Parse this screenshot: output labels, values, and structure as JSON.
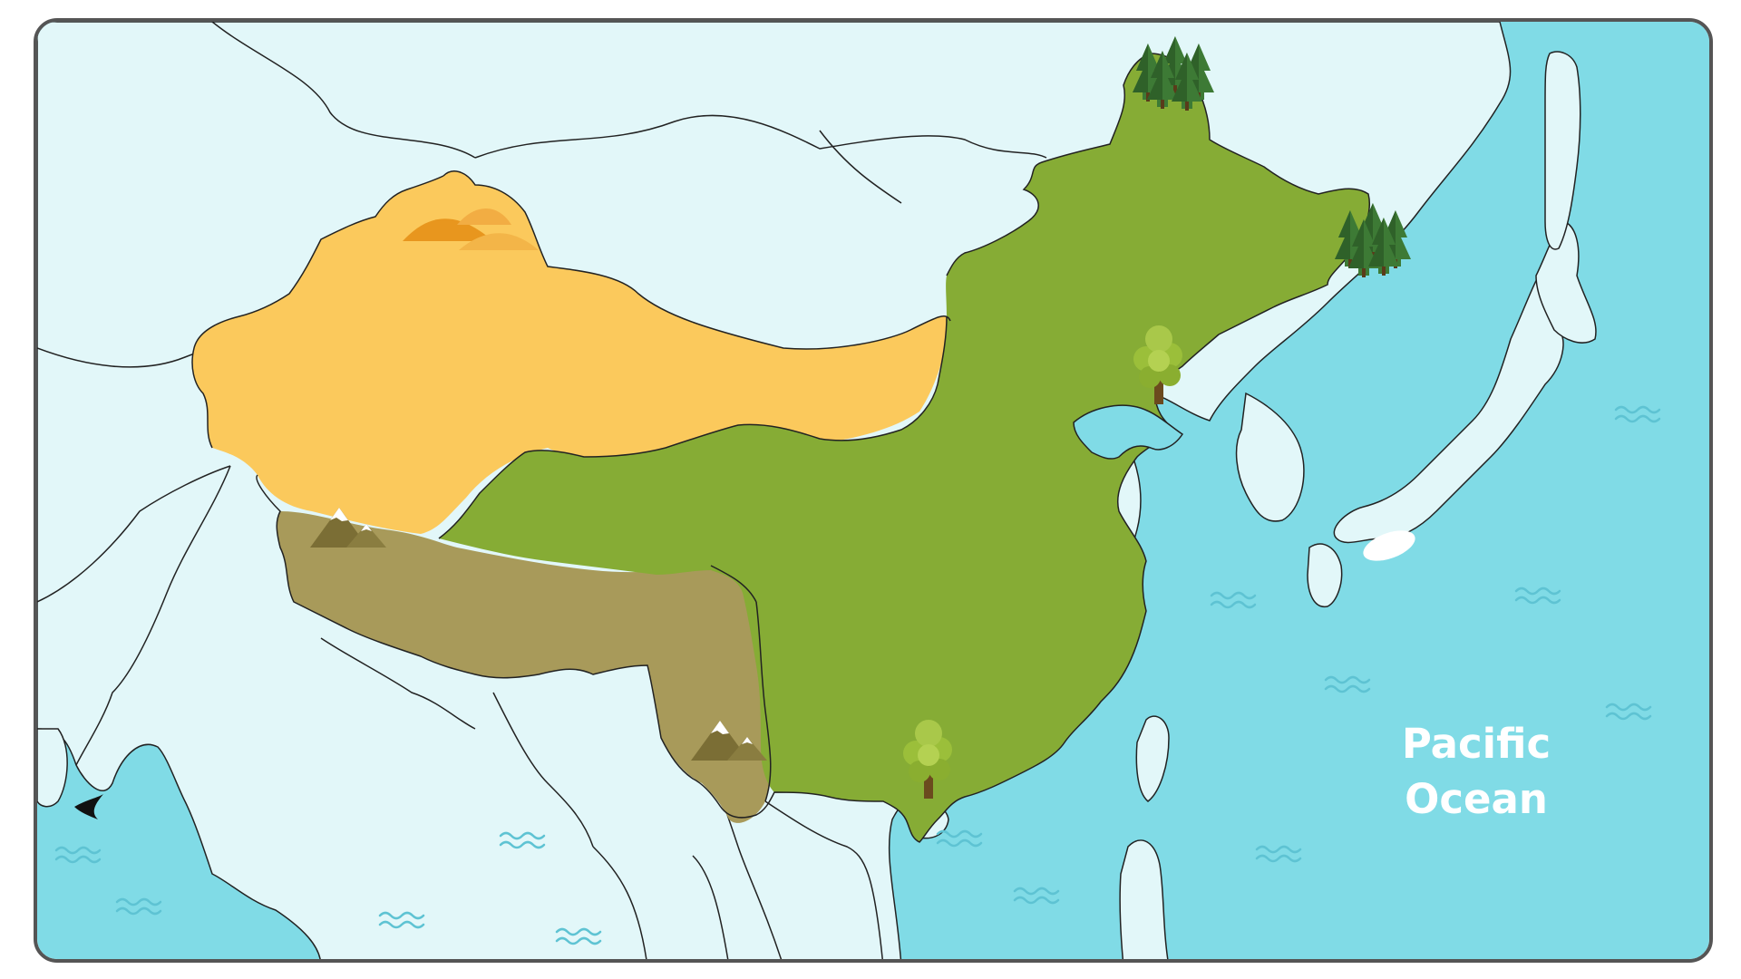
{
  "map": {
    "labels": {
      "ocean_line1": "Pacific",
      "ocean_line2": "Ocean"
    },
    "colors": {
      "ocean": "#80dbe6",
      "land": "#e2f7f9",
      "border": "#222222",
      "frame": "#555555",
      "wave": "#5ec3d3",
      "region_desert": "#fbc95c",
      "region_plateau": "#a89a5a",
      "region_green": "#86ac35",
      "ocean_label": "#ffffff"
    },
    "regions": [
      {
        "name": "desert",
        "terrain_icon": "dune-icon"
      },
      {
        "name": "plateau",
        "terrain_icon": "mountain-icon"
      },
      {
        "name": "lowland",
        "terrain_icon": "tree-icon"
      },
      {
        "name": "northeast",
        "terrain_icon": "pine-forest-icon"
      }
    ]
  }
}
